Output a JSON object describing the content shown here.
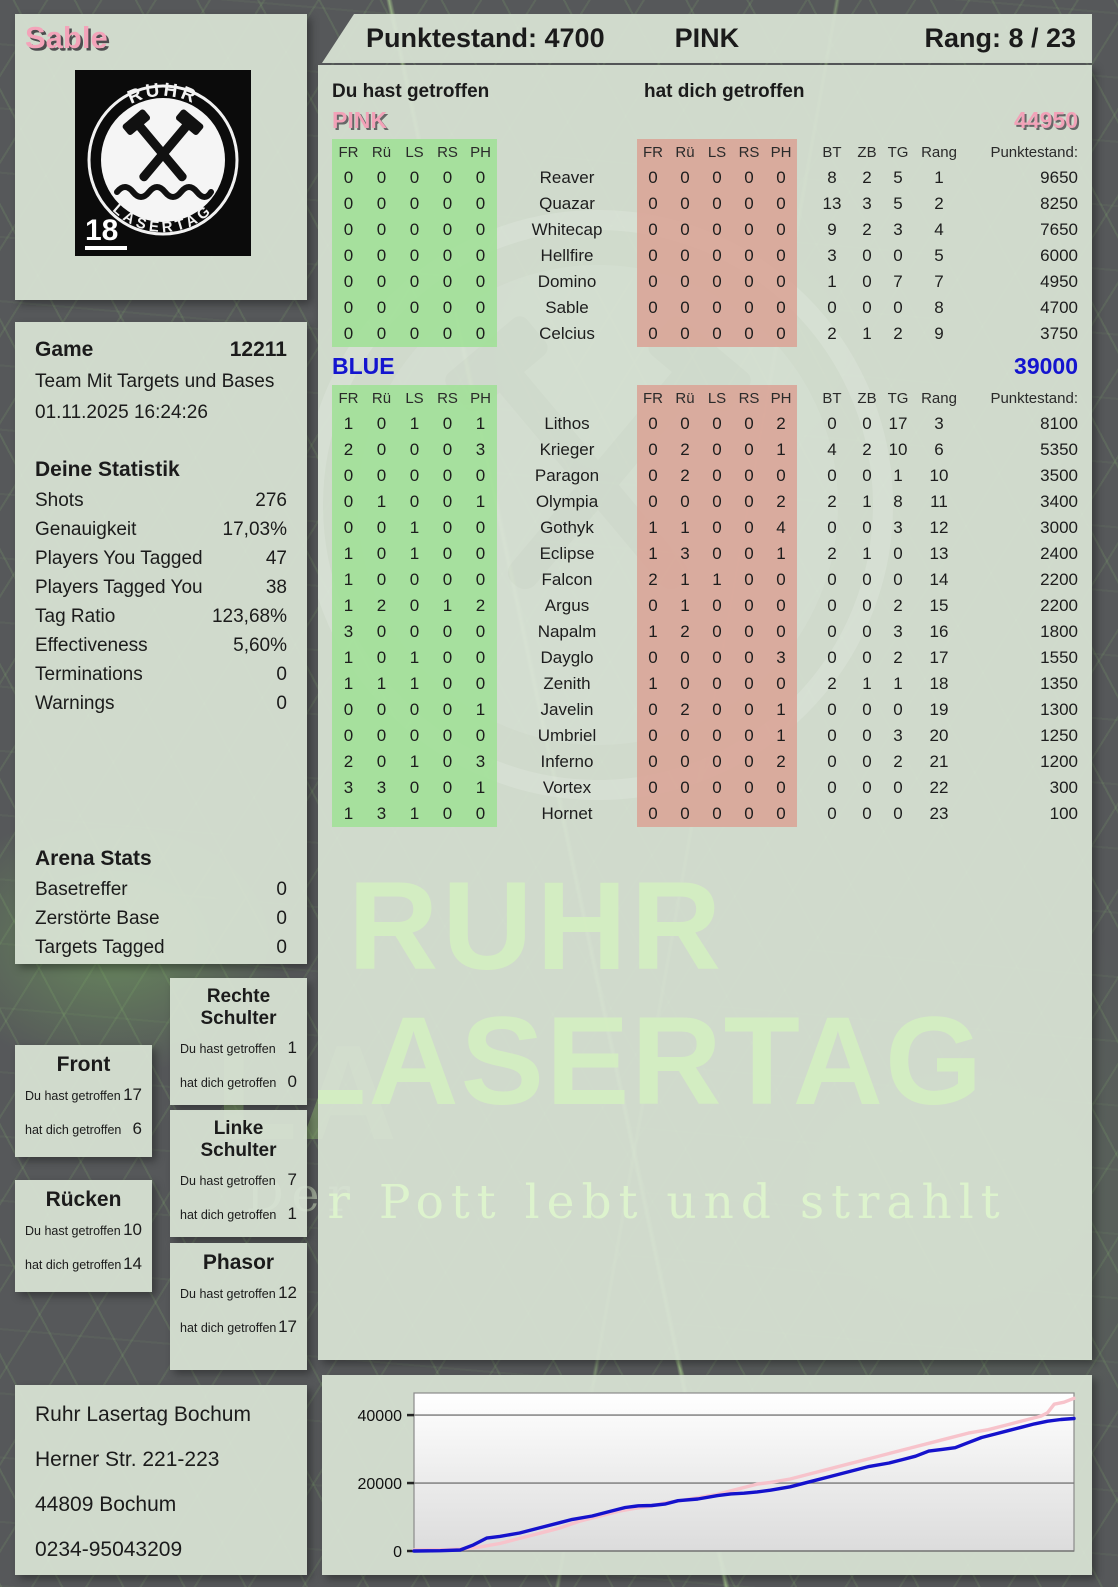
{
  "player": {
    "name": "Sable"
  },
  "header": {
    "punktestand": "Punktestand: 4700",
    "team": "PINK",
    "rang": "Rang: 8 / 23"
  },
  "logo": {
    "arc_top": "RUHR",
    "arc_bottom": "LASERTAG",
    "age": "18"
  },
  "game": {
    "label": "Game",
    "id": "12211",
    "mode": "Team Mit Targets und Bases",
    "datetime": "01.11.2025 16:24:26"
  },
  "your_stats": {
    "title": "Deine Statistik",
    "rows": [
      {
        "label": "Shots",
        "value": "276"
      },
      {
        "label": "Genauigkeit",
        "value": "17,03%"
      },
      {
        "label": "Players You Tagged",
        "value": "47"
      },
      {
        "label": "Players Tagged You",
        "value": "38"
      },
      {
        "label": "Tag Ratio",
        "value": "123,68%"
      },
      {
        "label": "Effectiveness",
        "value": "5,60%"
      },
      {
        "label": "Terminations",
        "value": "0"
      },
      {
        "label": "Warnings",
        "value": "0"
      }
    ]
  },
  "arena_stats": {
    "title": "Arena Stats",
    "rows": [
      {
        "label": "Basetreffer",
        "value": "0"
      },
      {
        "label": "Zerstörte Base",
        "value": "0"
      },
      {
        "label": "Targets Tagged",
        "value": "0"
      }
    ]
  },
  "hit_section": {
    "you": "Du hast getroffen",
    "them": "hat dich getroffen"
  },
  "table_cols": {
    "hit": [
      "FR",
      "Rü",
      "LS",
      "RS",
      "PH"
    ],
    "meta": [
      "BT",
      "ZB",
      "TG",
      "Rang",
      "Punktestand:"
    ]
  },
  "teams": [
    {
      "name": "PINK",
      "total": "44950",
      "rows": [
        {
          "you": [
            0,
            0,
            0,
            0,
            0
          ],
          "name": "Reaver",
          "them": [
            0,
            0,
            0,
            0,
            0
          ],
          "bt": 8,
          "zb": 2,
          "tg": 5,
          "rang": 1,
          "score": "9650"
        },
        {
          "you": [
            0,
            0,
            0,
            0,
            0
          ],
          "name": "Quazar",
          "them": [
            0,
            0,
            0,
            0,
            0
          ],
          "bt": 13,
          "zb": 3,
          "tg": 5,
          "rang": 2,
          "score": "8250"
        },
        {
          "you": [
            0,
            0,
            0,
            0,
            0
          ],
          "name": "Whitecap",
          "them": [
            0,
            0,
            0,
            0,
            0
          ],
          "bt": 9,
          "zb": 2,
          "tg": 3,
          "rang": 4,
          "score": "7650"
        },
        {
          "you": [
            0,
            0,
            0,
            0,
            0
          ],
          "name": "Hellfire",
          "them": [
            0,
            0,
            0,
            0,
            0
          ],
          "bt": 3,
          "zb": 0,
          "tg": 0,
          "rang": 5,
          "score": "6000"
        },
        {
          "you": [
            0,
            0,
            0,
            0,
            0
          ],
          "name": "Domino",
          "them": [
            0,
            0,
            0,
            0,
            0
          ],
          "bt": 1,
          "zb": 0,
          "tg": 7,
          "rang": 7,
          "score": "4950"
        },
        {
          "you": [
            0,
            0,
            0,
            0,
            0
          ],
          "name": "Sable",
          "them": [
            0,
            0,
            0,
            0,
            0
          ],
          "bt": 0,
          "zb": 0,
          "tg": 0,
          "rang": 8,
          "score": "4700"
        },
        {
          "you": [
            0,
            0,
            0,
            0,
            0
          ],
          "name": "Celcius",
          "them": [
            0,
            0,
            0,
            0,
            0
          ],
          "bt": 2,
          "zb": 1,
          "tg": 2,
          "rang": 9,
          "score": "3750"
        }
      ]
    },
    {
      "name": "BLUE",
      "total": "39000",
      "rows": [
        {
          "you": [
            1,
            0,
            1,
            0,
            1
          ],
          "name": "Lithos",
          "them": [
            0,
            0,
            0,
            0,
            2
          ],
          "bt": 0,
          "zb": 0,
          "tg": 17,
          "rang": 3,
          "score": "8100"
        },
        {
          "you": [
            2,
            0,
            0,
            0,
            3
          ],
          "name": "Krieger",
          "them": [
            0,
            2,
            0,
            0,
            1
          ],
          "bt": 4,
          "zb": 2,
          "tg": 10,
          "rang": 6,
          "score": "5350"
        },
        {
          "you": [
            0,
            0,
            0,
            0,
            0
          ],
          "name": "Paragon",
          "them": [
            0,
            2,
            0,
            0,
            0
          ],
          "bt": 0,
          "zb": 0,
          "tg": 1,
          "rang": 10,
          "score": "3500"
        },
        {
          "you": [
            0,
            1,
            0,
            0,
            1
          ],
          "name": "Olympia",
          "them": [
            0,
            0,
            0,
            0,
            2
          ],
          "bt": 2,
          "zb": 1,
          "tg": 8,
          "rang": 11,
          "score": "3400"
        },
        {
          "you": [
            0,
            0,
            1,
            0,
            0
          ],
          "name": "Gothyk",
          "them": [
            1,
            1,
            0,
            0,
            4
          ],
          "bt": 0,
          "zb": 0,
          "tg": 3,
          "rang": 12,
          "score": "3000"
        },
        {
          "you": [
            1,
            0,
            1,
            0,
            0
          ],
          "name": "Eclipse",
          "them": [
            1,
            3,
            0,
            0,
            1
          ],
          "bt": 2,
          "zb": 1,
          "tg": 0,
          "rang": 13,
          "score": "2400"
        },
        {
          "you": [
            1,
            0,
            0,
            0,
            0
          ],
          "name": "Falcon",
          "them": [
            2,
            1,
            1,
            0,
            0
          ],
          "bt": 0,
          "zb": 0,
          "tg": 0,
          "rang": 14,
          "score": "2200"
        },
        {
          "you": [
            1,
            2,
            0,
            1,
            2
          ],
          "name": "Argus",
          "them": [
            0,
            1,
            0,
            0,
            0
          ],
          "bt": 0,
          "zb": 0,
          "tg": 2,
          "rang": 15,
          "score": "2200"
        },
        {
          "you": [
            3,
            0,
            0,
            0,
            0
          ],
          "name": "Napalm",
          "them": [
            1,
            2,
            0,
            0,
            0
          ],
          "bt": 0,
          "zb": 0,
          "tg": 3,
          "rang": 16,
          "score": "1800"
        },
        {
          "you": [
            1,
            0,
            1,
            0,
            0
          ],
          "name": "Dayglo",
          "them": [
            0,
            0,
            0,
            0,
            3
          ],
          "bt": 0,
          "zb": 0,
          "tg": 2,
          "rang": 17,
          "score": "1550"
        },
        {
          "you": [
            1,
            1,
            1,
            0,
            0
          ],
          "name": "Zenith",
          "them": [
            1,
            0,
            0,
            0,
            0
          ],
          "bt": 2,
          "zb": 1,
          "tg": 1,
          "rang": 18,
          "score": "1350"
        },
        {
          "you": [
            0,
            0,
            0,
            0,
            1
          ],
          "name": "Javelin",
          "them": [
            0,
            2,
            0,
            0,
            1
          ],
          "bt": 0,
          "zb": 0,
          "tg": 0,
          "rang": 19,
          "score": "1300"
        },
        {
          "you": [
            0,
            0,
            0,
            0,
            0
          ],
          "name": "Umbriel",
          "them": [
            0,
            0,
            0,
            0,
            1
          ],
          "bt": 0,
          "zb": 0,
          "tg": 3,
          "rang": 20,
          "score": "1250"
        },
        {
          "you": [
            2,
            0,
            1,
            0,
            3
          ],
          "name": "Inferno",
          "them": [
            0,
            0,
            0,
            0,
            2
          ],
          "bt": 0,
          "zb": 0,
          "tg": 2,
          "rang": 21,
          "score": "1200"
        },
        {
          "you": [
            3,
            3,
            0,
            0,
            1
          ],
          "name": "Vortex",
          "them": [
            0,
            0,
            0,
            0,
            0
          ],
          "bt": 0,
          "zb": 0,
          "tg": 0,
          "rang": 22,
          "score": "300"
        },
        {
          "you": [
            1,
            3,
            1,
            0,
            0
          ],
          "name": "Hornet",
          "them": [
            0,
            0,
            0,
            0,
            0
          ],
          "bt": 0,
          "zb": 0,
          "tg": 0,
          "rang": 23,
          "score": "100"
        }
      ]
    }
  ],
  "part_labels": {
    "you": "Du hast getroffen",
    "them": "hat dich getroffen"
  },
  "body_parts": [
    {
      "title": "Rechte Schulter",
      "you": "1",
      "them": "0"
    },
    {
      "title": "Front",
      "you": "17",
      "them": "6"
    },
    {
      "title": "Linke Schulter",
      "you": "7",
      "them": "1"
    },
    {
      "title": "Rücken",
      "you": "10",
      "them": "14"
    },
    {
      "title": "Phasor",
      "you": "12",
      "them": "17"
    }
  ],
  "address": {
    "line1": "Ruhr Lasertag Bochum",
    "line2": "Herner Str. 221-223",
    "line3": "44809 Bochum",
    "line4": "0234-95043209"
  },
  "watermark": {
    "line1": "RUHR",
    "line2": "LASERTAG",
    "line3": "Der Pott lebt und strahlt"
  },
  "colors": {
    "pink": "#f2a2b8",
    "blue": "#1414cf",
    "green_block": "#9ce092",
    "red_block": "#dba093"
  },
  "chart_data": {
    "type": "line",
    "title": "",
    "xlabel": "",
    "ylabel": "",
    "ylim": [
      0,
      46500
    ],
    "yticks": [
      0,
      20000,
      40000
    ],
    "grid": true,
    "legend": "none",
    "series": [
      {
        "name": "PINK",
        "color": "#f7c3cb",
        "final": 44950,
        "points": [
          [
            0,
            300
          ],
          [
            0.05,
            400
          ],
          [
            0.08,
            700
          ],
          [
            0.1,
            1200
          ],
          [
            0.13,
            2200
          ],
          [
            0.16,
            3700
          ],
          [
            0.19,
            5200
          ],
          [
            0.22,
            6700
          ],
          [
            0.25,
            8700
          ],
          [
            0.28,
            10200
          ],
          [
            0.31,
            11700
          ],
          [
            0.34,
            12700
          ],
          [
            0.36,
            13200
          ],
          [
            0.38,
            14200
          ],
          [
            0.4,
            14700
          ],
          [
            0.43,
            15700
          ],
          [
            0.46,
            16700
          ],
          [
            0.49,
            18200
          ],
          [
            0.52,
            19700
          ],
          [
            0.54,
            20200
          ],
          [
            0.57,
            21200
          ],
          [
            0.6,
            22700
          ],
          [
            0.63,
            24200
          ],
          [
            0.66,
            25700
          ],
          [
            0.69,
            27200
          ],
          [
            0.72,
            28700
          ],
          [
            0.75,
            30200
          ],
          [
            0.78,
            31700
          ],
          [
            0.81,
            33200
          ],
          [
            0.84,
            34700
          ],
          [
            0.87,
            35700
          ],
          [
            0.9,
            37200
          ],
          [
            0.93,
            38700
          ],
          [
            0.95,
            39700
          ],
          [
            0.96,
            40700
          ],
          [
            0.97,
            43200
          ],
          [
            0.985,
            43800
          ],
          [
            1,
            44950
          ]
        ]
      },
      {
        "name": "BLUE",
        "color": "#1512cc",
        "final": 39000,
        "points": [
          [
            0,
            0
          ],
          [
            0.04,
            100
          ],
          [
            0.07,
            300
          ],
          [
            0.09,
            1800
          ],
          [
            0.11,
            3800
          ],
          [
            0.13,
            4300
          ],
          [
            0.16,
            5300
          ],
          [
            0.19,
            6800
          ],
          [
            0.22,
            8300
          ],
          [
            0.24,
            9300
          ],
          [
            0.27,
            10300
          ],
          [
            0.3,
            11800
          ],
          [
            0.32,
            12800
          ],
          [
            0.34,
            13300
          ],
          [
            0.36,
            13400
          ],
          [
            0.38,
            13800
          ],
          [
            0.4,
            14800
          ],
          [
            0.43,
            15300
          ],
          [
            0.46,
            16300
          ],
          [
            0.48,
            16800
          ],
          [
            0.5,
            17000
          ],
          [
            0.52,
            17400
          ],
          [
            0.54,
            17900
          ],
          [
            0.57,
            18900
          ],
          [
            0.6,
            20400
          ],
          [
            0.63,
            21900
          ],
          [
            0.66,
            23400
          ],
          [
            0.69,
            24900
          ],
          [
            0.72,
            25900
          ],
          [
            0.74,
            26900
          ],
          [
            0.76,
            27900
          ],
          [
            0.78,
            29400
          ],
          [
            0.8,
            29900
          ],
          [
            0.82,
            30400
          ],
          [
            0.84,
            31900
          ],
          [
            0.86,
            33400
          ],
          [
            0.88,
            34400
          ],
          [
            0.9,
            35400
          ],
          [
            0.92,
            36400
          ],
          [
            0.94,
            37400
          ],
          [
            0.96,
            38200
          ],
          [
            0.98,
            38700
          ],
          [
            1,
            39000
          ]
        ]
      }
    ]
  }
}
